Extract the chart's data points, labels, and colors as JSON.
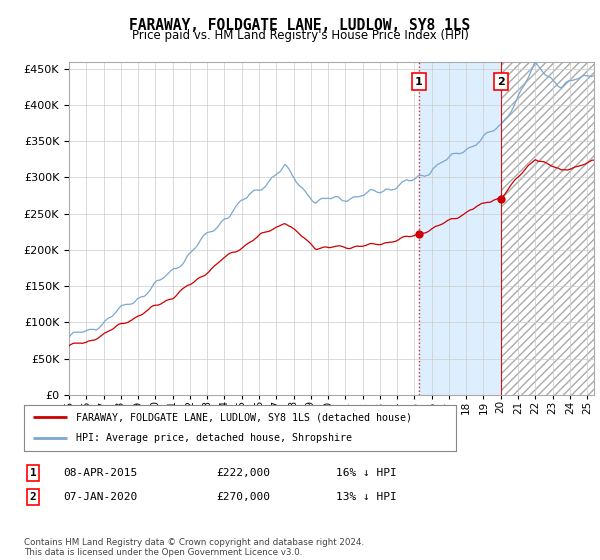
{
  "title": "FARAWAY, FOLDGATE LANE, LUDLOW, SY8 1LS",
  "subtitle": "Price paid vs. HM Land Registry's House Price Index (HPI)",
  "ylim": [
    0,
    460000
  ],
  "yticks": [
    0,
    50000,
    100000,
    150000,
    200000,
    250000,
    300000,
    350000,
    400000,
    450000
  ],
  "xlim_start": 1995.0,
  "xlim_end": 2025.4,
  "background_color": "#ffffff",
  "grid_color": "#cccccc",
  "hpi_color": "#7aa8d0",
  "property_color": "#cc0000",
  "sale1_date": 2015.27,
  "sale1_price": 222000,
  "sale2_date": 2020.03,
  "sale2_price": 270000,
  "shade_between_color": "#ddeeff",
  "shade_after_color": "#e8e8e8",
  "legend_property": "FARAWAY, FOLDGATE LANE, LUDLOW, SY8 1LS (detached house)",
  "legend_hpi": "HPI: Average price, detached house, Shropshire",
  "table_row1": [
    "1",
    "08-APR-2015",
    "£222,000",
    "16% ↓ HPI"
  ],
  "table_row2": [
    "2",
    "07-JAN-2020",
    "£270,000",
    "13% ↓ HPI"
  ],
  "footer": "Contains HM Land Registry data © Crown copyright and database right 2024.\nThis data is licensed under the Open Government Licence v3.0."
}
